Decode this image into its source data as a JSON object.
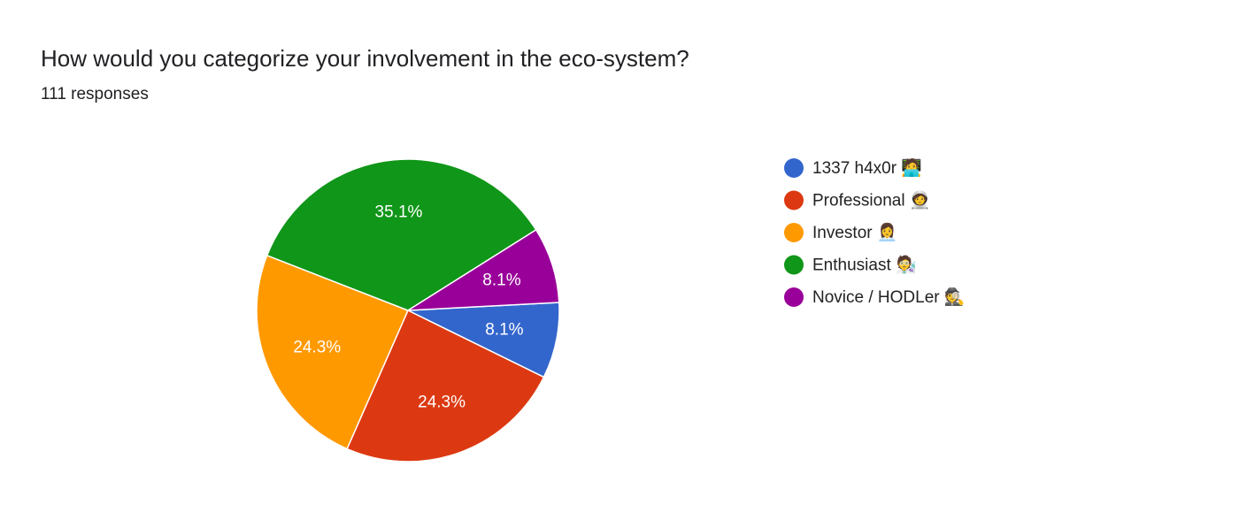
{
  "chart_data": {
    "type": "pie",
    "title": "How would you categorize your involvement in the eco-system?",
    "subtitle": "111 responses",
    "categories": [
      "1337 h4x0r 🧑‍💻",
      "Professional 🧑‍🚀",
      "Investor 👩‍💼",
      "Enthusiast 🧑‍🔬",
      "Novice / HODLer 🕵️"
    ],
    "values": [
      8.1,
      24.3,
      24.3,
      35.1,
      8.1
    ],
    "value_labels": [
      "8.1%",
      "24.3%",
      "24.3%",
      "35.1%",
      "8.1%"
    ],
    "colors": [
      "#3366cc",
      "#dc3912",
      "#ff9900",
      "#109618",
      "#990099"
    ],
    "legend": "right"
  }
}
